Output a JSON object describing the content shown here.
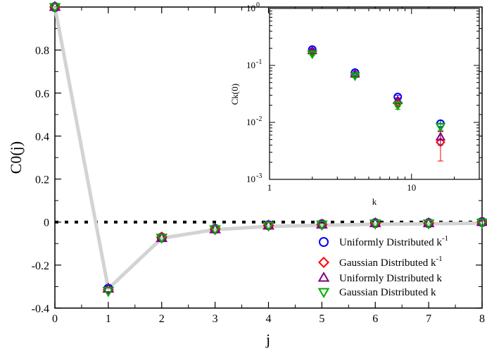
{
  "chart_data": [
    {
      "type": "scatter",
      "xlabel": "j",
      "ylabel": "C0(j)",
      "xlim": [
        0,
        8
      ],
      "ylim": [
        -0.4,
        1.0
      ],
      "x_ticks": [
        0,
        1,
        2,
        3,
        4,
        5,
        6,
        7,
        8
      ],
      "y_ticks": [
        -0.4,
        -0.2,
        0,
        0.2,
        0.4,
        0.6,
        0.8
      ],
      "reference_line": {
        "y": 0,
        "style": "dotted"
      },
      "trend_line": {
        "x": [
          0,
          1,
          2,
          3,
          4,
          5,
          6,
          7,
          8
        ],
        "y": [
          1.0,
          -0.31,
          -0.075,
          -0.035,
          -0.02,
          -0.015,
          -0.01,
          -0.008,
          -0.005
        ],
        "color": "#d3d3d3"
      },
      "legend_position": "lower-right",
      "series": [
        {
          "name": "Uniformly Distributed k",
          "name_sup": "-1",
          "marker": "circle",
          "color": "#0000ff",
          "x": [
            0,
            1,
            2,
            3,
            4,
            5,
            6,
            7,
            8
          ],
          "y": [
            1.0,
            -0.31,
            -0.072,
            -0.032,
            -0.015,
            -0.01,
            -0.005,
            -0.005,
            0.0
          ]
        },
        {
          "name": "Gaussian Distributed k",
          "name_sup": "-1",
          "marker": "diamond",
          "color": "#ff0000",
          "x": [
            0,
            1,
            2,
            3,
            4,
            5,
            6,
            7,
            8
          ],
          "y": [
            1.0,
            -0.315,
            -0.07,
            -0.033,
            -0.016,
            -0.011,
            -0.006,
            -0.005,
            0.0
          ]
        },
        {
          "name": "Uniformly Distributed k",
          "name_sup": "",
          "marker": "triangle-up",
          "color": "#800080",
          "x": [
            0,
            1,
            2,
            3,
            4,
            5,
            6,
            7,
            8
          ],
          "y": [
            1.0,
            -0.31,
            -0.075,
            -0.034,
            -0.017,
            -0.012,
            -0.006,
            -0.006,
            0.0
          ]
        },
        {
          "name": "Gaussian Distributed k",
          "name_sup": "",
          "marker": "triangle-down",
          "color": "#00aa00",
          "x": [
            0,
            1,
            2,
            3,
            4,
            5,
            6,
            7,
            8
          ],
          "y": [
            1.0,
            -0.32,
            -0.072,
            -0.033,
            -0.016,
            -0.011,
            -0.006,
            -0.006,
            -0.002
          ]
        }
      ]
    },
    {
      "type": "scatter",
      "scale": "log-log",
      "xlabel": "k",
      "ylabel": "Ck(0)",
      "xlim": [
        1,
        30
      ],
      "ylim": [
        0.001,
        1
      ],
      "x_ticks": [
        1,
        10
      ],
      "x_tick_labels": [
        "1",
        "10"
      ],
      "y_ticks": [
        0.001,
        0.01,
        0.1,
        1
      ],
      "y_tick_labels": [
        {
          "base": "10",
          "exp": "-3"
        },
        {
          "base": "10",
          "exp": "-2"
        },
        {
          "base": "10",
          "exp": "-1"
        },
        {
          "base": "10",
          "exp": "0"
        }
      ],
      "series": [
        {
          "marker": "circle",
          "color": "#0000ff",
          "x": [
            2,
            4,
            8,
            16
          ],
          "y": [
            0.19,
            0.075,
            0.028,
            0.0095
          ],
          "err": [
            0.01,
            0.005,
            0.002,
            0.0013
          ]
        },
        {
          "marker": "diamond",
          "color": "#ff0000",
          "x": [
            2,
            4,
            8,
            16
          ],
          "y": [
            0.175,
            0.068,
            0.022,
            0.0045
          ],
          "err": [
            0.01,
            0.005,
            0.003,
            0.0024
          ]
        },
        {
          "marker": "triangle-up",
          "color": "#800080",
          "x": [
            2,
            4,
            8,
            16
          ],
          "y": [
            0.18,
            0.07,
            0.024,
            0.0055
          ],
          "err": [
            0.01,
            0.005,
            0.003,
            0.0015
          ]
        },
        {
          "marker": "triangle-down",
          "color": "#00aa00",
          "x": [
            2,
            4,
            8,
            16
          ],
          "y": [
            0.16,
            0.066,
            0.02,
            0.0085
          ],
          "err": [
            0.01,
            0.005,
            0.003,
            0.0012
          ]
        }
      ]
    }
  ]
}
